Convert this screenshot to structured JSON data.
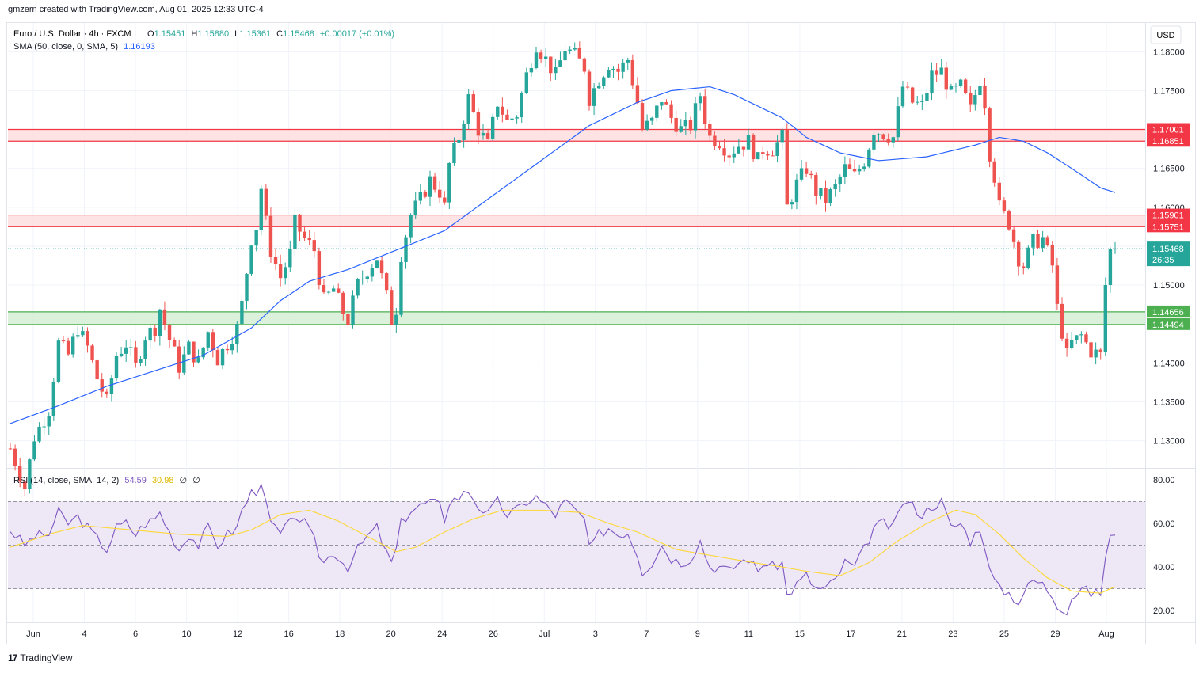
{
  "header": {
    "caption": "gmzern created with TradingView.com, Aug 01, 2025 12:33 UTC-4"
  },
  "footer": {
    "brand": "TradingView",
    "logo_mark": "17"
  },
  "legend": {
    "symbol": "Euro / U.S. Dollar · 4h · FXCM",
    "ohlc": {
      "o_label": "O",
      "o": "1.15451",
      "h_label": "H",
      "h": "1.15880",
      "l_label": "L",
      "l": "1.15361",
      "c_label": "C",
      "c": "1.15468",
      "change": "+0.00017 (+0.01%)"
    },
    "sma_label": "SMA (50, close, 0, SMA, 5)",
    "sma_value": "1.16193",
    "rsi_label": "RSI (14, close, SMA, 14, 2)",
    "rsi_value": "54.59",
    "rsi_ma_value": "30.98",
    "rsi_extra1": "∅",
    "rsi_extra2": "∅"
  },
  "currency_button": "USD",
  "countdown": "26:35",
  "colors": {
    "up": "#26a69a",
    "down": "#ef5350",
    "sma": "#2962ff",
    "rsi": "#7e57c2",
    "rsi_ma": "#fdd835",
    "resistance_fill": "#fde0e0",
    "resistance_line": "#f23645",
    "support_fill": "#d7f0d7",
    "support_line": "#4caf50",
    "rsi_band": "#ede7f6"
  },
  "chart_data": {
    "type": "candlestick",
    "instrument": "EUR/USD",
    "timeframe": "4h",
    "price_axis": {
      "ticks": [
        "1.18000",
        "1.17500",
        "1.17000",
        "1.16500",
        "1.16000",
        "1.15500",
        "1.15000",
        "1.14500",
        "1.14000",
        "1.13500",
        "1.13000"
      ],
      "range": [
        1.1265,
        1.1837
      ]
    },
    "time_axis": {
      "labels": [
        "Jun",
        "4",
        "6",
        "10",
        "12",
        "16",
        "18",
        "20",
        "24",
        "26",
        "Jul",
        "3",
        "7",
        "9",
        "11",
        "15",
        "17",
        "21",
        "23",
        "25",
        "29",
        "Aug"
      ]
    },
    "zones": [
      {
        "kind": "resistance",
        "upper": 1.17001,
        "lower": 1.16851,
        "upper_label": "1.17001",
        "lower_label": "1.16851"
      },
      {
        "kind": "resistance",
        "upper": 1.15901,
        "lower": 1.15751,
        "upper_label": "1.15901",
        "lower_label": "1.15751"
      },
      {
        "kind": "support",
        "upper": 1.14656,
        "lower": 1.14494,
        "upper_label": "1.14656",
        "lower_label": "1.14494"
      }
    ],
    "last_price": {
      "value": 1.15468,
      "label": "1.15468"
    },
    "sma_current": 1.16193,
    "close_path": [
      [
        0,
        1.129
      ],
      [
        3,
        1.124
      ],
      [
        5,
        1.1305
      ],
      [
        8,
        1.134
      ],
      [
        10,
        1.1425
      ],
      [
        12,
        1.141
      ],
      [
        14,
        1.1445
      ],
      [
        16,
        1.142
      ],
      [
        18,
        1.138
      ],
      [
        20,
        1.135
      ],
      [
        22,
        1.141
      ],
      [
        24,
        1.1425
      ],
      [
        26,
        1.1395
      ],
      [
        28,
        1.1435
      ],
      [
        30,
        1.1445
      ],
      [
        31,
        1.147
      ],
      [
        33,
        1.143
      ],
      [
        35,
        1.1395
      ],
      [
        37,
        1.142
      ],
      [
        39,
        1.14
      ],
      [
        41,
        1.144
      ],
      [
        43,
        1.1405
      ],
      [
        45,
        1.1425
      ],
      [
        47,
        1.1445
      ],
      [
        48,
        1.1475
      ],
      [
        50,
        1.156
      ],
      [
        51,
        1.1575
      ],
      [
        52,
        1.1625
      ],
      [
        53,
        1.158
      ],
      [
        54,
        1.1545
      ],
      [
        56,
        1.151
      ],
      [
        58,
        1.154
      ],
      [
        59,
        1.158
      ],
      [
        61,
        1.156
      ],
      [
        63,
        1.1545
      ],
      [
        64,
        1.151
      ],
      [
        65,
        1.148
      ],
      [
        67,
        1.1495
      ],
      [
        69,
        1.1465
      ],
      [
        70,
        1.1455
      ],
      [
        72,
        1.15
      ],
      [
        74,
        1.152
      ],
      [
        76,
        1.1535
      ],
      [
        78,
        1.1485
      ],
      [
        79,
        1.1455
      ],
      [
        80,
        1.147
      ],
      [
        81,
        1.154
      ],
      [
        83,
        1.159
      ],
      [
        85,
        1.161
      ],
      [
        87,
        1.1635
      ],
      [
        89,
        1.162
      ],
      [
        90,
        1.16
      ],
      [
        91,
        1.1655
      ],
      [
        93,
        1.169
      ],
      [
        95,
        1.174
      ],
      [
        97,
        1.17
      ],
      [
        99,
        1.168
      ],
      [
        101,
        1.1735
      ],
      [
        103,
        1.171
      ],
      [
        105,
        1.172
      ],
      [
        107,
        1.177
      ],
      [
        109,
        1.181
      ],
      [
        111,
        1.179
      ],
      [
        113,
        1.177
      ],
      [
        115,
        1.1805
      ],
      [
        117,
        1.1795
      ],
      [
        119,
        1.178
      ],
      [
        120,
        1.174
      ],
      [
        122,
        1.1765
      ],
      [
        124,
        1.1785
      ],
      [
        126,
        1.1775
      ],
      [
        128,
        1.179
      ],
      [
        130,
        1.1735
      ],
      [
        131,
        1.17
      ],
      [
        133,
        1.171
      ],
      [
        135,
        1.174
      ],
      [
        137,
        1.1715
      ],
      [
        139,
        1.17
      ],
      [
        141,
        1.1705
      ],
      [
        143,
        1.1745
      ],
      [
        144,
        1.1715
      ],
      [
        145,
        1.169
      ],
      [
        147,
        1.1685
      ],
      [
        149,
        1.167
      ],
      [
        151,
        1.168
      ],
      [
        153,
        1.1685
      ],
      [
        155,
        1.166
      ],
      [
        156,
        1.1675
      ],
      [
        158,
        1.1675
      ],
      [
        160,
        1.169
      ],
      [
        161,
        1.16
      ],
      [
        163,
        1.163
      ],
      [
        165,
        1.165
      ],
      [
        167,
        1.162
      ],
      [
        169,
        1.161
      ],
      [
        171,
        1.1625
      ],
      [
        173,
        1.165
      ],
      [
        175,
        1.164
      ],
      [
        177,
        1.166
      ],
      [
        179,
        1.17
      ],
      [
        181,
        1.1695
      ],
      [
        183,
        1.169
      ],
      [
        185,
        1.1755
      ],
      [
        187,
        1.1735
      ],
      [
        189,
        1.173
      ],
      [
        191,
        1.177
      ],
      [
        193,
        1.1775
      ],
      [
        195,
        1.1745
      ],
      [
        197,
        1.1755
      ],
      [
        199,
        1.1725
      ],
      [
        201,
        1.1765
      ],
      [
        202,
        1.1735
      ],
      [
        203,
        1.167
      ],
      [
        204,
        1.164
      ],
      [
        205,
        1.16
      ],
      [
        207,
        1.158
      ],
      [
        209,
        1.1535
      ],
      [
        210,
        1.1525
      ],
      [
        212,
        1.1555
      ],
      [
        214,
        1.156
      ],
      [
        216,
        1.1525
      ],
      [
        217,
        1.147
      ],
      [
        219,
        1.141
      ],
      [
        220,
        1.1425
      ],
      [
        222,
        1.1435
      ],
      [
        224,
        1.1415
      ],
      [
        226,
        1.141
      ],
      [
        227,
        1.15
      ],
      [
        228,
        1.1545
      ],
      [
        229,
        1.1547
      ]
    ],
    "sma_path": [
      [
        0,
        1.1322
      ],
      [
        10,
        1.1345
      ],
      [
        20,
        1.137
      ],
      [
        30,
        1.139
      ],
      [
        40,
        1.141
      ],
      [
        50,
        1.1445
      ],
      [
        56,
        1.148
      ],
      [
        62,
        1.1505
      ],
      [
        70,
        1.152
      ],
      [
        80,
        1.1545
      ],
      [
        90,
        1.157
      ],
      [
        100,
        1.1615
      ],
      [
        110,
        1.166
      ],
      [
        120,
        1.1705
      ],
      [
        130,
        1.1735
      ],
      [
        137,
        1.175
      ],
      [
        145,
        1.1755
      ],
      [
        150,
        1.1745
      ],
      [
        160,
        1.1715
      ],
      [
        165,
        1.169
      ],
      [
        172,
        1.167
      ],
      [
        180,
        1.166
      ],
      [
        190,
        1.1665
      ],
      [
        200,
        1.168
      ],
      [
        205,
        1.169
      ],
      [
        210,
        1.1685
      ],
      [
        215,
        1.167
      ],
      [
        220,
        1.165
      ],
      [
        226,
        1.1625
      ],
      [
        229,
        1.1619
      ]
    ],
    "rsi": {
      "ticks": [
        "80.00",
        "60.00",
        "40.00",
        "20.00"
      ],
      "range": [
        15,
        85
      ],
      "levels": [
        70,
        50,
        30
      ],
      "current": 54.59,
      "ma_current": 30.98,
      "path": [
        [
          0,
          57
        ],
        [
          3,
          50
        ],
        [
          5,
          54
        ],
        [
          8,
          55
        ],
        [
          10,
          65
        ],
        [
          12,
          60
        ],
        [
          14,
          63
        ],
        [
          16,
          58
        ],
        [
          18,
          53
        ],
        [
          20,
          48
        ],
        [
          22,
          58
        ],
        [
          24,
          60
        ],
        [
          26,
          55
        ],
        [
          28,
          60
        ],
        [
          30,
          62
        ],
        [
          31,
          65
        ],
        [
          33,
          56
        ],
        [
          35,
          48
        ],
        [
          37,
          55
        ],
        [
          39,
          50
        ],
        [
          41,
          58
        ],
        [
          43,
          50
        ],
        [
          45,
          55
        ],
        [
          47,
          58
        ],
        [
          48,
          66
        ],
        [
          50,
          74
        ],
        [
          51,
          75
        ],
        [
          52,
          80
        ],
        [
          53,
          68
        ],
        [
          54,
          60
        ],
        [
          56,
          55
        ],
        [
          58,
          60
        ],
        [
          59,
          64
        ],
        [
          61,
          60
        ],
        [
          63,
          52
        ],
        [
          64,
          46
        ],
        [
          65,
          42
        ],
        [
          67,
          47
        ],
        [
          69,
          42
        ],
        [
          70,
          40
        ],
        [
          72,
          48
        ],
        [
          74,
          54
        ],
        [
          76,
          58
        ],
        [
          78,
          46
        ],
        [
          79,
          42
        ],
        [
          80,
          48
        ],
        [
          81,
          60
        ],
        [
          83,
          66
        ],
        [
          85,
          68
        ],
        [
          87,
          70
        ],
        [
          89,
          68
        ],
        [
          90,
          62
        ],
        [
          91,
          70
        ],
        [
          93,
          72
        ],
        [
          95,
          75
        ],
        [
          97,
          68
        ],
        [
          99,
          64
        ],
        [
          101,
          70
        ],
        [
          103,
          64
        ],
        [
          105,
          66
        ],
        [
          107,
          70
        ],
        [
          109,
          72
        ],
        [
          111,
          68
        ],
        [
          113,
          64
        ],
        [
          115,
          70
        ],
        [
          117,
          66
        ],
        [
          119,
          62
        ],
        [
          120,
          48
        ],
        [
          122,
          55
        ],
        [
          124,
          58
        ],
        [
          126,
          55
        ],
        [
          128,
          56
        ],
        [
          130,
          46
        ],
        [
          131,
          38
        ],
        [
          133,
          42
        ],
        [
          135,
          50
        ],
        [
          137,
          44
        ],
        [
          139,
          42
        ],
        [
          141,
          44
        ],
        [
          143,
          52
        ],
        [
          144,
          46
        ],
        [
          145,
          40
        ],
        [
          147,
          40
        ],
        [
          149,
          38
        ],
        [
          151,
          42
        ],
        [
          153,
          44
        ],
        [
          155,
          38
        ],
        [
          156,
          42
        ],
        [
          158,
          40
        ],
        [
          160,
          42
        ],
        [
          161,
          27
        ],
        [
          163,
          32
        ],
        [
          165,
          36
        ],
        [
          167,
          30
        ],
        [
          169,
          30
        ],
        [
          171,
          34
        ],
        [
          173,
          42
        ],
        [
          175,
          40
        ],
        [
          177,
          48
        ],
        [
          179,
          58
        ],
        [
          181,
          60
        ],
        [
          183,
          58
        ],
        [
          185,
          70
        ],
        [
          187,
          68
        ],
        [
          189,
          64
        ],
        [
          191,
          68
        ],
        [
          193,
          70
        ],
        [
          195,
          58
        ],
        [
          197,
          60
        ],
        [
          199,
          52
        ],
        [
          201,
          58
        ],
        [
          202,
          50
        ],
        [
          203,
          38
        ],
        [
          204,
          34
        ],
        [
          205,
          30
        ],
        [
          207,
          28
        ],
        [
          209,
          24
        ],
        [
          210,
          28
        ],
        [
          212,
          34
        ],
        [
          214,
          32
        ],
        [
          216,
          27
        ],
        [
          217,
          23
        ],
        [
          219,
          20
        ],
        [
          220,
          26
        ],
        [
          222,
          30
        ],
        [
          224,
          28
        ],
        [
          226,
          28
        ],
        [
          227,
          45
        ],
        [
          228,
          54
        ],
        [
          229,
          54.59
        ]
      ],
      "ma_path": [
        [
          0,
          49
        ],
        [
          8,
          55
        ],
        [
          15,
          59
        ],
        [
          25,
          57
        ],
        [
          35,
          55
        ],
        [
          45,
          54
        ],
        [
          50,
          57
        ],
        [
          56,
          64
        ],
        [
          62,
          66
        ],
        [
          68,
          61
        ],
        [
          74,
          54
        ],
        [
          80,
          47
        ],
        [
          84,
          49
        ],
        [
          90,
          56
        ],
        [
          96,
          62
        ],
        [
          102,
          66
        ],
        [
          110,
          66
        ],
        [
          118,
          65
        ],
        [
          124,
          60
        ],
        [
          130,
          56
        ],
        [
          138,
          48
        ],
        [
          146,
          45
        ],
        [
          154,
          42
        ],
        [
          160,
          40
        ],
        [
          165,
          38
        ],
        [
          172,
          36
        ],
        [
          178,
          42
        ],
        [
          184,
          52
        ],
        [
          190,
          60
        ],
        [
          196,
          66
        ],
        [
          200,
          64
        ],
        [
          205,
          55
        ],
        [
          210,
          44
        ],
        [
          215,
          35
        ],
        [
          220,
          29
        ],
        [
          226,
          28
        ],
        [
          229,
          30.98
        ]
      ]
    }
  }
}
